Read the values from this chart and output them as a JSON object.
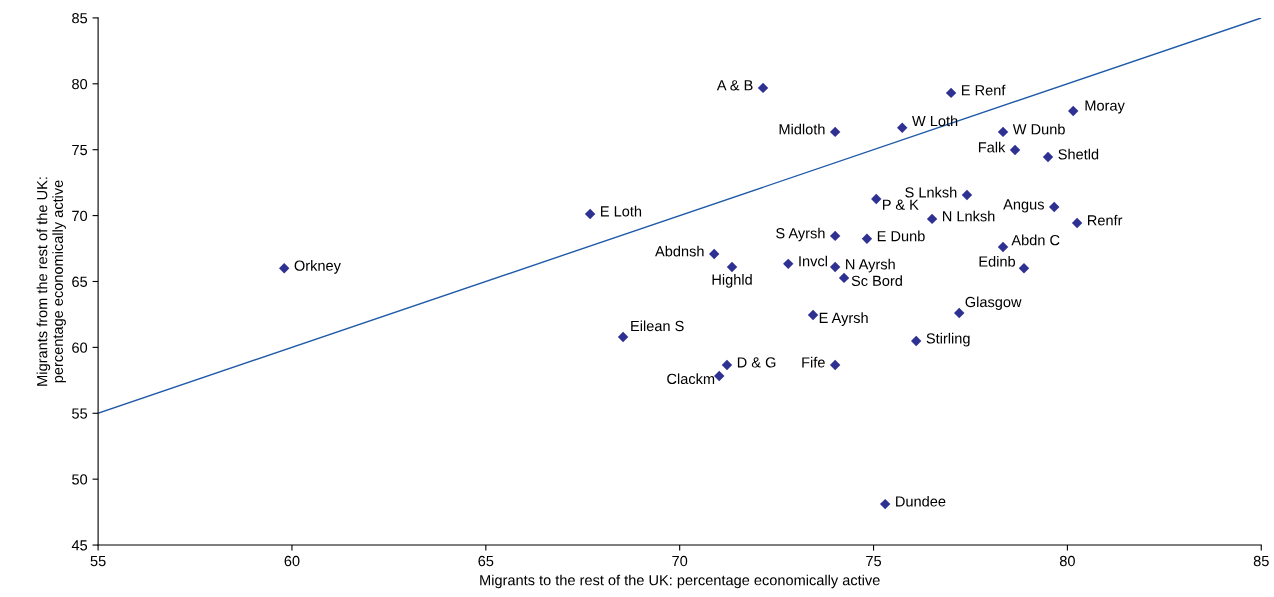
{
  "chart_data": {
    "type": "scatter",
    "xlabel": "Migrants to the rest of the UK: percentage economically active",
    "ylabel": "Migrants from the rest of the UK:\npercentage economically active",
    "xlim": [
      55,
      85
    ],
    "ylim": [
      45,
      85
    ],
    "xticks": [
      55,
      60,
      65,
      70,
      75,
      80,
      85
    ],
    "yticks": [
      45,
      50,
      55,
      60,
      65,
      70,
      75,
      80,
      85
    ],
    "grid": false,
    "legend": false,
    "series": [
      {
        "marker": "diamond",
        "color": "#2e3192",
        "x": [
          59.8,
          67.69,
          68.54,
          72.15,
          70.89,
          71.35,
          72.8,
          71.02,
          71.22,
          73.44,
          74.01,
          74.01,
          74.01,
          74.24,
          74.01,
          74.83,
          75.07,
          75.3,
          75.74,
          76.51,
          76.1,
          77.0,
          77.41,
          77.21,
          78.34,
          78.65,
          78.34,
          78.88,
          79.5,
          79.66,
          80.15,
          80.25
        ],
        "values": [
          66.0,
          70.12,
          60.79,
          79.69,
          67.09,
          66.1,
          66.34,
          57.83,
          58.66,
          62.46,
          76.35,
          68.46,
          66.1,
          65.27,
          58.66,
          68.24,
          71.26,
          48.11,
          76.66,
          69.75,
          60.48,
          79.31,
          71.56,
          62.61,
          76.35,
          74.98,
          67.62,
          66.0,
          74.45,
          70.65,
          77.94,
          69.44
        ]
      },
      {
        "type": "line",
        "color": "#1f5aa8",
        "line_style": "solid",
        "x": [
          55,
          85
        ],
        "values": [
          55,
          85
        ]
      }
    ],
    "annotations": [
      {
        "text": "Orkney",
        "x": 59.8,
        "y": 66.0
      },
      {
        "text": "E Loth",
        "x": 67.69,
        "y": 70.12
      },
      {
        "text": "Eilean S",
        "x": 68.54,
        "y": 60.79
      },
      {
        "text": "A & B",
        "x": 72.15,
        "y": 79.69
      },
      {
        "text": "Abdnsh",
        "x": 70.89,
        "y": 67.09
      },
      {
        "text": "Highld",
        "x": 71.35,
        "y": 66.1
      },
      {
        "text": "Invcl",
        "x": 72.8,
        "y": 66.34
      },
      {
        "text": "Clackm",
        "x": 71.02,
        "y": 57.83
      },
      {
        "text": "D & G",
        "x": 71.22,
        "y": 58.66
      },
      {
        "text": "E Ayrsh",
        "x": 73.44,
        "y": 62.46
      },
      {
        "text": "Midloth",
        "x": 74.01,
        "y": 76.35
      },
      {
        "text": "S Ayrsh",
        "x": 74.01,
        "y": 68.46
      },
      {
        "text": "N Ayrsh",
        "x": 74.01,
        "y": 66.1
      },
      {
        "text": "Sc Bord",
        "x": 74.24,
        "y": 65.27
      },
      {
        "text": "Fife",
        "x": 74.01,
        "y": 58.66
      },
      {
        "text": "E Dunb",
        "x": 74.83,
        "y": 68.24
      },
      {
        "text": "P & K",
        "x": 75.07,
        "y": 71.26
      },
      {
        "text": "Dundee",
        "x": 75.3,
        "y": 48.11
      },
      {
        "text": "W Loth",
        "x": 75.74,
        "y": 76.66
      },
      {
        "text": "N Lnksh",
        "x": 76.51,
        "y": 69.75
      },
      {
        "text": "Stirling",
        "x": 76.1,
        "y": 60.48
      },
      {
        "text": "E Renf",
        "x": 77.0,
        "y": 79.31
      },
      {
        "text": "S Lnksh",
        "x": 77.41,
        "y": 71.56
      },
      {
        "text": "Glasgow",
        "x": 77.21,
        "y": 62.61
      },
      {
        "text": "W Dunb",
        "x": 78.34,
        "y": 76.35
      },
      {
        "text": "Falk",
        "x": 78.65,
        "y": 74.98
      },
      {
        "text": "Abdn C",
        "x": 78.34,
        "y": 67.62
      },
      {
        "text": "Edinb",
        "x": 78.88,
        "y": 66.0
      },
      {
        "text": "Shetld",
        "x": 79.5,
        "y": 74.45
      },
      {
        "text": "Angus",
        "x": 79.66,
        "y": 70.65
      },
      {
        "text": "Moray",
        "x": 80.15,
        "y": 77.94
      },
      {
        "text": "Renfr",
        "x": 80.25,
        "y": 69.44
      }
    ]
  }
}
